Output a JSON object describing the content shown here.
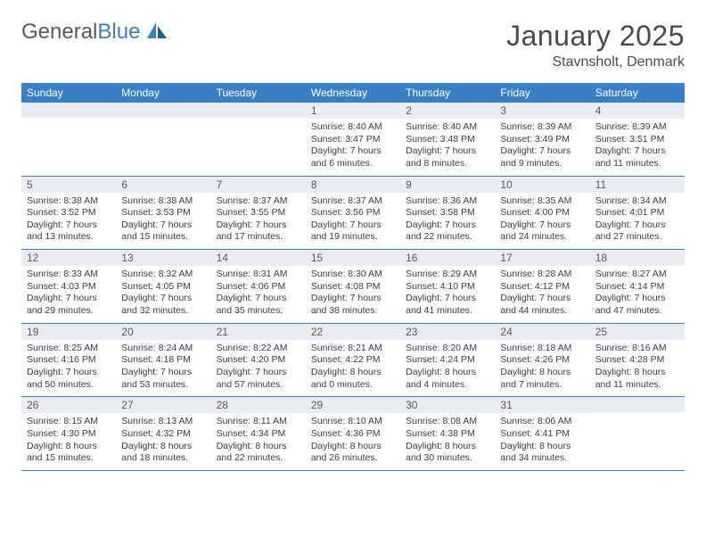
{
  "brand": {
    "text_general": "General",
    "text_blue": "Blue"
  },
  "title": "January 2025",
  "location": "Stavnsholt, Denmark",
  "colors": {
    "header_bg": "#3a7fc4",
    "header_text": "#ffffff",
    "daynum_bg": "#e9edf1",
    "border": "#3a7fc4",
    "text": "#333333"
  },
  "weekdays": [
    "Sunday",
    "Monday",
    "Tuesday",
    "Wednesday",
    "Thursday",
    "Friday",
    "Saturday"
  ],
  "weeks": [
    [
      {
        "n": "",
        "lines": []
      },
      {
        "n": "",
        "lines": []
      },
      {
        "n": "",
        "lines": []
      },
      {
        "n": "1",
        "lines": [
          "Sunrise: 8:40 AM",
          "Sunset: 3:47 PM",
          "Daylight: 7 hours",
          "and 6 minutes."
        ]
      },
      {
        "n": "2",
        "lines": [
          "Sunrise: 8:40 AM",
          "Sunset: 3:48 PM",
          "Daylight: 7 hours",
          "and 8 minutes."
        ]
      },
      {
        "n": "3",
        "lines": [
          "Sunrise: 8:39 AM",
          "Sunset: 3:49 PM",
          "Daylight: 7 hours",
          "and 9 minutes."
        ]
      },
      {
        "n": "4",
        "lines": [
          "Sunrise: 8:39 AM",
          "Sunset: 3:51 PM",
          "Daylight: 7 hours",
          "and 11 minutes."
        ]
      }
    ],
    [
      {
        "n": "5",
        "lines": [
          "Sunrise: 8:38 AM",
          "Sunset: 3:52 PM",
          "Daylight: 7 hours",
          "and 13 minutes."
        ]
      },
      {
        "n": "6",
        "lines": [
          "Sunrise: 8:38 AM",
          "Sunset: 3:53 PM",
          "Daylight: 7 hours",
          "and 15 minutes."
        ]
      },
      {
        "n": "7",
        "lines": [
          "Sunrise: 8:37 AM",
          "Sunset: 3:55 PM",
          "Daylight: 7 hours",
          "and 17 minutes."
        ]
      },
      {
        "n": "8",
        "lines": [
          "Sunrise: 8:37 AM",
          "Sunset: 3:56 PM",
          "Daylight: 7 hours",
          "and 19 minutes."
        ]
      },
      {
        "n": "9",
        "lines": [
          "Sunrise: 8:36 AM",
          "Sunset: 3:58 PM",
          "Daylight: 7 hours",
          "and 22 minutes."
        ]
      },
      {
        "n": "10",
        "lines": [
          "Sunrise: 8:35 AM",
          "Sunset: 4:00 PM",
          "Daylight: 7 hours",
          "and 24 minutes."
        ]
      },
      {
        "n": "11",
        "lines": [
          "Sunrise: 8:34 AM",
          "Sunset: 4:01 PM",
          "Daylight: 7 hours",
          "and 27 minutes."
        ]
      }
    ],
    [
      {
        "n": "12",
        "lines": [
          "Sunrise: 8:33 AM",
          "Sunset: 4:03 PM",
          "Daylight: 7 hours",
          "and 29 minutes."
        ]
      },
      {
        "n": "13",
        "lines": [
          "Sunrise: 8:32 AM",
          "Sunset: 4:05 PM",
          "Daylight: 7 hours",
          "and 32 minutes."
        ]
      },
      {
        "n": "14",
        "lines": [
          "Sunrise: 8:31 AM",
          "Sunset: 4:06 PM",
          "Daylight: 7 hours",
          "and 35 minutes."
        ]
      },
      {
        "n": "15",
        "lines": [
          "Sunrise: 8:30 AM",
          "Sunset: 4:08 PM",
          "Daylight: 7 hours",
          "and 38 minutes."
        ]
      },
      {
        "n": "16",
        "lines": [
          "Sunrise: 8:29 AM",
          "Sunset: 4:10 PM",
          "Daylight: 7 hours",
          "and 41 minutes."
        ]
      },
      {
        "n": "17",
        "lines": [
          "Sunrise: 8:28 AM",
          "Sunset: 4:12 PM",
          "Daylight: 7 hours",
          "and 44 minutes."
        ]
      },
      {
        "n": "18",
        "lines": [
          "Sunrise: 8:27 AM",
          "Sunset: 4:14 PM",
          "Daylight: 7 hours",
          "and 47 minutes."
        ]
      }
    ],
    [
      {
        "n": "19",
        "lines": [
          "Sunrise: 8:25 AM",
          "Sunset: 4:16 PM",
          "Daylight: 7 hours",
          "and 50 minutes."
        ]
      },
      {
        "n": "20",
        "lines": [
          "Sunrise: 8:24 AM",
          "Sunset: 4:18 PM",
          "Daylight: 7 hours",
          "and 53 minutes."
        ]
      },
      {
        "n": "21",
        "lines": [
          "Sunrise: 8:22 AM",
          "Sunset: 4:20 PM",
          "Daylight: 7 hours",
          "and 57 minutes."
        ]
      },
      {
        "n": "22",
        "lines": [
          "Sunrise: 8:21 AM",
          "Sunset: 4:22 PM",
          "Daylight: 8 hours",
          "and 0 minutes."
        ]
      },
      {
        "n": "23",
        "lines": [
          "Sunrise: 8:20 AM",
          "Sunset: 4:24 PM",
          "Daylight: 8 hours",
          "and 4 minutes."
        ]
      },
      {
        "n": "24",
        "lines": [
          "Sunrise: 8:18 AM",
          "Sunset: 4:26 PM",
          "Daylight: 8 hours",
          "and 7 minutes."
        ]
      },
      {
        "n": "25",
        "lines": [
          "Sunrise: 8:16 AM",
          "Sunset: 4:28 PM",
          "Daylight: 8 hours",
          "and 11 minutes."
        ]
      }
    ],
    [
      {
        "n": "26",
        "lines": [
          "Sunrise: 8:15 AM",
          "Sunset: 4:30 PM",
          "Daylight: 8 hours",
          "and 15 minutes."
        ]
      },
      {
        "n": "27",
        "lines": [
          "Sunrise: 8:13 AM",
          "Sunset: 4:32 PM",
          "Daylight: 8 hours",
          "and 18 minutes."
        ]
      },
      {
        "n": "28",
        "lines": [
          "Sunrise: 8:11 AM",
          "Sunset: 4:34 PM",
          "Daylight: 8 hours",
          "and 22 minutes."
        ]
      },
      {
        "n": "29",
        "lines": [
          "Sunrise: 8:10 AM",
          "Sunset: 4:36 PM",
          "Daylight: 8 hours",
          "and 26 minutes."
        ]
      },
      {
        "n": "30",
        "lines": [
          "Sunrise: 8:08 AM",
          "Sunset: 4:38 PM",
          "Daylight: 8 hours",
          "and 30 minutes."
        ]
      },
      {
        "n": "31",
        "lines": [
          "Sunrise: 8:06 AM",
          "Sunset: 4:41 PM",
          "Daylight: 8 hours",
          "and 34 minutes."
        ]
      },
      {
        "n": "",
        "lines": []
      }
    ]
  ]
}
